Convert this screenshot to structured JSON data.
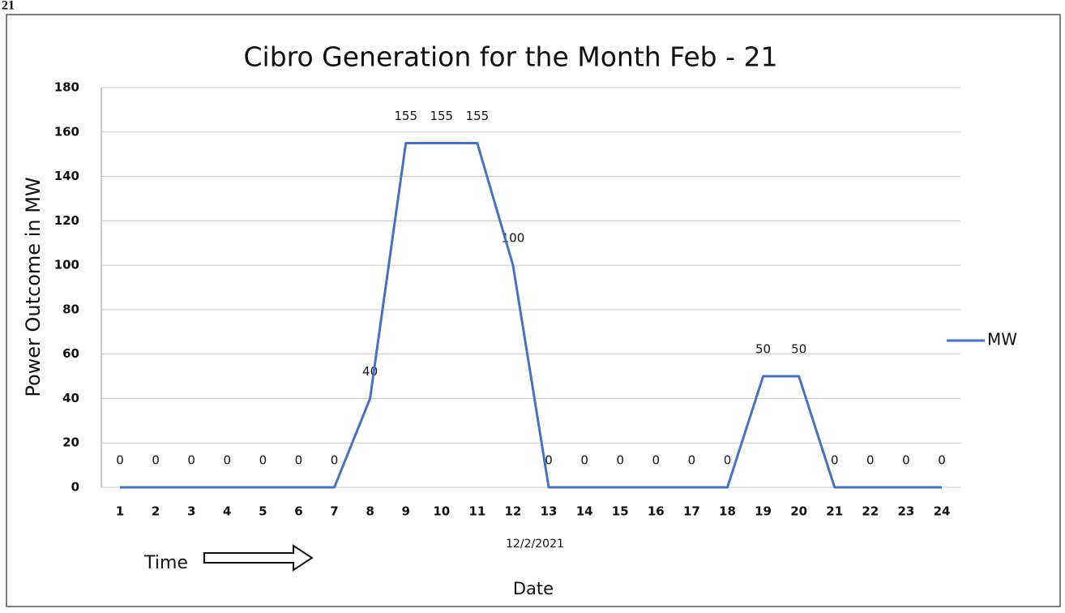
{
  "chart_data": {
    "type": "line",
    "page_label": "21",
    "title": "Cibro Generation for the Month Feb - 21",
    "y_label": "Power Outcome in MW",
    "x_label": "Date",
    "annotations": [
      "12/2/2021",
      "Time"
    ],
    "categories": [
      "1",
      "2",
      "3",
      "4",
      "5",
      "6",
      "7",
      "8",
      "9",
      "10",
      "11",
      "12",
      "13",
      "14",
      "15",
      "16",
      "17",
      "18",
      "19",
      "20",
      "21",
      "22",
      "23",
      "24"
    ],
    "series": [
      {
        "name": "MW",
        "color": "#4a72b8",
        "values": [
          0,
          0,
          0,
          0,
          0,
          0,
          0,
          40,
          155,
          155,
          155,
          100,
          0,
          0,
          0,
          0,
          0,
          0,
          50,
          50,
          0,
          0,
          0,
          0
        ]
      }
    ],
    "ylim": [
      0,
      180
    ],
    "yticks": [
      0,
      20,
      40,
      60,
      80,
      100,
      120,
      140,
      160,
      180
    ],
    "grid": true,
    "legend": "right",
    "data_labels": true
  }
}
